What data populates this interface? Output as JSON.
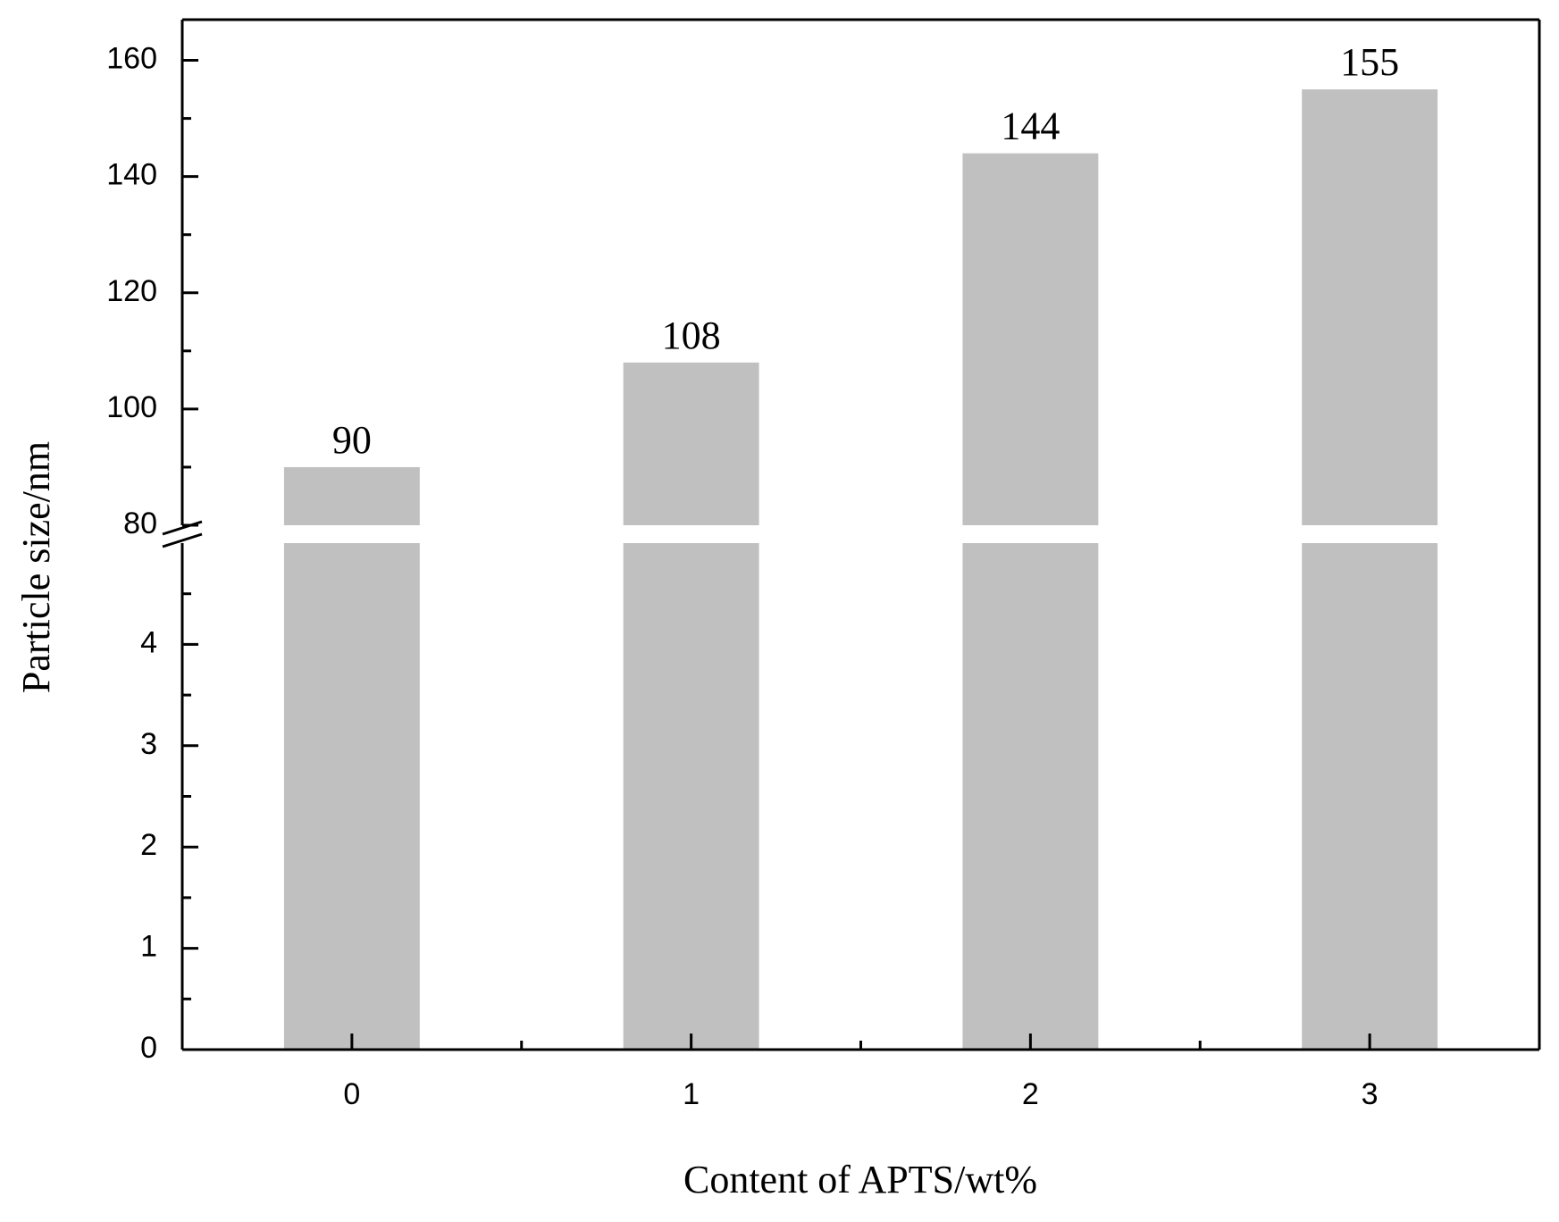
{
  "chart_data": {
    "type": "bar",
    "xlabel": "Content of APTS/wt%",
    "ylabel": "Particle size/nm",
    "categories": [
      "0",
      "1",
      "2",
      "3"
    ],
    "values": [
      90,
      108,
      144,
      155
    ],
    "color": "#c0c0c0",
    "y_segments": [
      {
        "ylim": [
          0,
          5
        ],
        "yticks": [
          0,
          1,
          2,
          3,
          4
        ]
      },
      {
        "ylim": [
          80,
          167
        ],
        "yticks": [
          80,
          100,
          120,
          140,
          160
        ]
      }
    ]
  }
}
